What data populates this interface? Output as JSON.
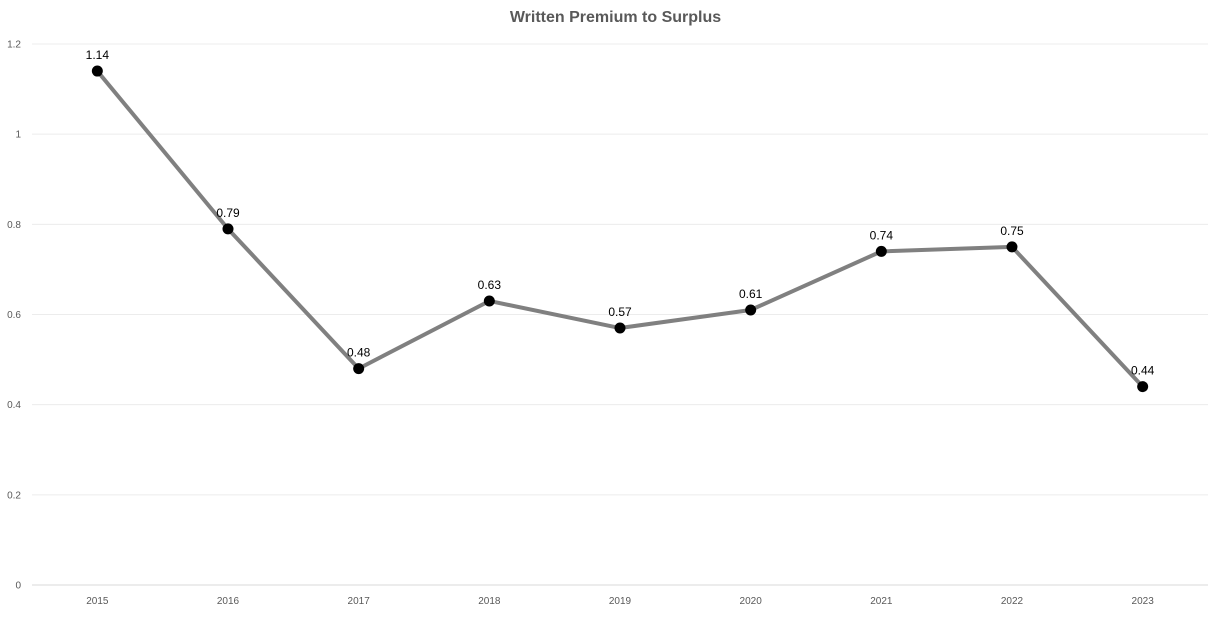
{
  "chart_data": {
    "type": "line",
    "title": "Written Premium to Surplus",
    "xlabel": "",
    "ylabel": "",
    "categories": [
      "2015",
      "2016",
      "2017",
      "2018",
      "2019",
      "2020",
      "2021",
      "2022",
      "2023"
    ],
    "series": [
      {
        "values": [
          1.14,
          0.79,
          0.48,
          0.63,
          0.57,
          0.61,
          0.74,
          0.75,
          0.44
        ],
        "data_labels": [
          "1.14",
          "0.79",
          "0.48",
          "0.63",
          "0.57",
          "0.61",
          "0.74",
          "0.75",
          "0.44"
        ]
      }
    ],
    "ylim": [
      0,
      1.2
    ],
    "y_ticks": [
      0,
      0.2,
      0.4,
      0.6,
      0.8,
      1,
      1.2
    ],
    "y_tick_labels": [
      "0",
      "0.2",
      "0.4",
      "0.6",
      "0.8",
      "1",
      "1.2"
    ],
    "grid": true,
    "legend": "none",
    "line_color": "#808080",
    "marker_color": "#000000",
    "grid_color": "#ececec"
  }
}
